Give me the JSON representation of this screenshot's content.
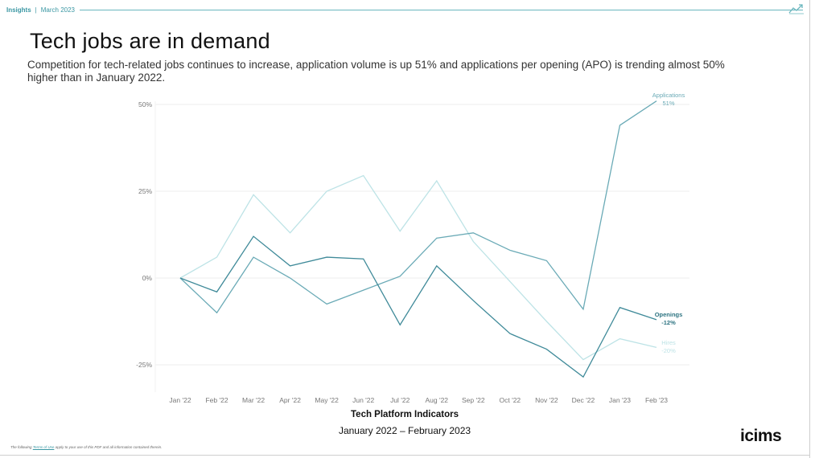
{
  "header": {
    "brand": "Insights",
    "separator": "|",
    "date": "March 2023"
  },
  "title": "Tech jobs are in demand",
  "subtitle": "Competition for tech-related jobs continues to increase, application volume is up 51% and applications per opening (APO) is trending almost 50% higher than in January 2022.",
  "footer": {
    "prefix": "The following",
    "link": "Terms of Use",
    "suffix": "apply to your use of this PDF and all information contained therein."
  },
  "logo": "icims",
  "colors": {
    "applications": "#6aaab6",
    "openings": "#3f8a99",
    "hires": "#bde3e6",
    "axis_text": "#777777",
    "grid": "#eeeeee",
    "accent": "#3a97a3"
  },
  "chart_data": {
    "type": "line",
    "title": "Tech Platform Indicators",
    "subtitle": "January 2022 – February 2023",
    "xlabel": "",
    "ylabel": "",
    "categories": [
      "Jan '22",
      "Feb '22",
      "Mar '22",
      "Apr '22",
      "May '22",
      "Jun '22",
      "Jul '22",
      "Aug '22",
      "Sep '22",
      "Oct '22",
      "Nov '22",
      "Dec '22",
      "Jan '23",
      "Feb '23"
    ],
    "yticks": [
      50,
      25,
      0,
      -25
    ],
    "ytick_labels": [
      "50%",
      "25%",
      "0%",
      "-25%"
    ],
    "ylim": [
      -30,
      52
    ],
    "grid": true,
    "series": [
      {
        "name": "Applications",
        "end_label": "51%",
        "color_key": "applications",
        "values": [
          0,
          -10,
          6,
          0,
          -7.5,
          -3.5,
          0.5,
          11.5,
          13,
          8,
          5,
          -9,
          44,
          51
        ]
      },
      {
        "name": "Openings",
        "end_label": "-12%",
        "color_key": "openings",
        "values": [
          0,
          -4,
          12,
          3.5,
          6,
          5.5,
          -13.5,
          3.5,
          -6.5,
          -16,
          -20.5,
          -28.5,
          -8.5,
          -12
        ]
      },
      {
        "name": "Hires",
        "end_label": "-20%",
        "color_key": "hires",
        "values": [
          0,
          6,
          24,
          13,
          25,
          29.5,
          13.5,
          28,
          10.5,
          -1,
          -12.5,
          -23.5,
          -17.5,
          -20
        ]
      }
    ]
  }
}
